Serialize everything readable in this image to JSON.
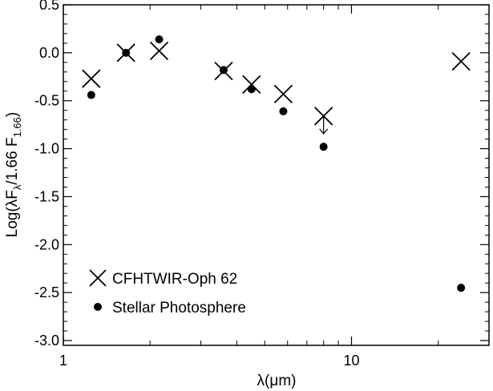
{
  "chart_data": {
    "type": "scatter",
    "title": "",
    "xlabel": {
      "prefix": "λ(",
      "mu": "μ",
      "rest": "m)"
    },
    "ylabel": {
      "p1": "Log(λF",
      "sub1": "λ",
      "p2": "/1.66 F",
      "sub2": "1.66",
      "p3": ")"
    },
    "x_scale": "log",
    "xlim": [
      1,
      30
    ],
    "ylim": [
      -3.05,
      0.5
    ],
    "x_ticks": [
      1,
      10
    ],
    "x_tick_labels": [
      "1",
      "10"
    ],
    "y_ticks": [
      0.5,
      0.0,
      -0.5,
      -1.0,
      -1.5,
      -2.0,
      -2.5,
      -3.0
    ],
    "y_tick_labels": [
      "0.5",
      "0.0",
      "-0.5",
      "-1.0",
      "-1.5",
      "-2.0",
      "-2.5",
      "-3.0"
    ],
    "grid": false,
    "legend_position": "bottom-left",
    "series": [
      {
        "name": "CFHTWIR-Oph 62",
        "marker": "cross",
        "x": [
          1.25,
          1.65,
          2.15,
          3.6,
          4.5,
          5.8,
          8.0,
          24.0
        ],
        "y": [
          -0.27,
          0.0,
          0.02,
          -0.19,
          -0.33,
          -0.43,
          -0.66,
          -0.09
        ],
        "upper_limit": [
          false,
          false,
          false,
          false,
          false,
          false,
          true,
          false
        ]
      },
      {
        "name": "Stellar Photosphere",
        "marker": "dot",
        "x": [
          1.25,
          1.65,
          2.15,
          3.6,
          4.5,
          5.8,
          8.0,
          24.0
        ],
        "y": [
          -0.44,
          0.0,
          0.14,
          -0.18,
          -0.38,
          -0.61,
          -0.98,
          -2.45
        ]
      }
    ]
  }
}
